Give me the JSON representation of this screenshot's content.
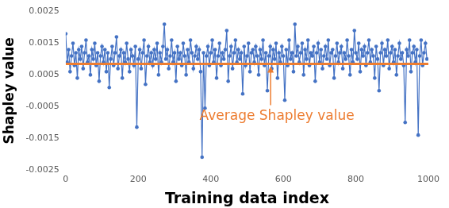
{
  "chart_data": {
    "type": "line",
    "x_label": "Training data index",
    "y_label": "Shapley value",
    "color": "#4472c4",
    "marker": "circle",
    "grid": false,
    "xlim": [
      0,
      1000
    ],
    "xticks": [
      0,
      200,
      400,
      600,
      800,
      1000
    ],
    "ylim": [
      -0.0025,
      0.0025
    ],
    "yticks": [
      -0.0025,
      -0.0015,
      -0.0005,
      0.0005,
      0.0015,
      0.0025
    ],
    "average": {
      "label": "Average Shapley value",
      "value": 0.00085,
      "color": "#ed7d31"
    },
    "x": [
      0,
      4,
      8,
      12,
      16,
      20,
      24,
      28,
      32,
      36,
      40,
      44,
      48,
      52,
      56,
      60,
      64,
      68,
      72,
      76,
      80,
      84,
      88,
      92,
      96,
      100,
      104,
      108,
      112,
      116,
      120,
      124,
      128,
      132,
      136,
      140,
      144,
      148,
      152,
      156,
      160,
      164,
      168,
      172,
      176,
      180,
      184,
      188,
      192,
      196,
      200,
      204,
      208,
      212,
      216,
      220,
      224,
      228,
      232,
      236,
      240,
      244,
      248,
      252,
      256,
      260,
      264,
      268,
      272,
      276,
      280,
      284,
      288,
      292,
      296,
      300,
      304,
      308,
      312,
      316,
      320,
      324,
      328,
      332,
      336,
      340,
      344,
      348,
      352,
      356,
      360,
      364,
      368,
      372,
      376,
      380,
      384,
      388,
      392,
      396,
      400,
      404,
      408,
      412,
      416,
      420,
      424,
      428,
      432,
      436,
      440,
      444,
      448,
      452,
      456,
      460,
      464,
      468,
      472,
      476,
      480,
      484,
      488,
      492,
      496,
      500,
      504,
      508,
      512,
      516,
      520,
      524,
      528,
      532,
      536,
      540,
      544,
      548,
      552,
      556,
      560,
      564,
      568,
      572,
      576,
      580,
      584,
      588,
      592,
      596,
      600,
      604,
      608,
      612,
      616,
      620,
      624,
      628,
      632,
      636,
      640,
      644,
      648,
      652,
      656,
      660,
      664,
      668,
      672,
      676,
      680,
      684,
      688,
      692,
      696,
      700,
      704,
      708,
      712,
      716,
      720,
      724,
      728,
      732,
      736,
      740,
      744,
      748,
      752,
      756,
      760,
      764,
      768,
      772,
      776,
      780,
      784,
      788,
      792,
      796,
      800,
      804,
      808,
      812,
      816,
      820,
      824,
      828,
      832,
      836,
      840,
      844,
      848,
      852,
      856,
      860,
      864,
      868,
      872,
      876,
      880,
      884,
      888,
      892,
      896,
      900,
      904,
      908,
      912,
      916,
      920,
      924,
      928,
      932,
      936,
      940,
      944,
      948,
      952,
      956,
      960,
      964,
      968,
      972,
      976,
      980,
      984,
      988,
      992,
      996
    ],
    "values": [
      0.0018,
      0.0009,
      0.0013,
      0.0006,
      0.0011,
      0.0015,
      0.0008,
      0.0012,
      0.0004,
      0.0013,
      0.001,
      0.0014,
      0.0007,
      0.0012,
      0.0016,
      0.0009,
      0.0011,
      0.0005,
      0.0013,
      0.001,
      0.0015,
      0.0008,
      0.0012,
      0.0003,
      0.0011,
      0.0014,
      0.0009,
      0.0013,
      0.0006,
      0.0012,
      0.0001,
      0.001,
      0.0014,
      0.0008,
      0.0012,
      0.0017,
      0.0007,
      0.0011,
      0.0013,
      0.0004,
      0.0012,
      0.0009,
      0.0015,
      0.001,
      0.0006,
      0.0013,
      0.0011,
      0.0008,
      0.0014,
      -0.00115,
      0.001,
      0.0013,
      0.0007,
      0.0012,
      0.0016,
      0.0002,
      0.0011,
      0.0014,
      0.0009,
      0.0012,
      0.0008,
      0.0013,
      0.001,
      0.0015,
      0.0005,
      0.0012,
      0.0009,
      0.0014,
      0.0021,
      0.001,
      0.0013,
      0.0007,
      0.0011,
      0.0016,
      0.0009,
      0.0012,
      0.0003,
      0.0014,
      0.001,
      0.0012,
      0.0008,
      0.0015,
      0.0011,
      0.0005,
      0.0013,
      0.0009,
      0.0016,
      0.0012,
      0.0007,
      0.0011,
      0.0014,
      0.001,
      0.0013,
      0.0006,
      -0.0021,
      0.0012,
      -0.00055,
      0.0011,
      0.0014,
      0.0008,
      0.0012,
      0.0016,
      0.0009,
      0.0013,
      0.0004,
      0.0011,
      0.0015,
      0.0008,
      0.0012,
      0.001,
      0.0013,
      0.0019,
      0.0003,
      0.0011,
      0.0014,
      0.0007,
      0.0012,
      0.0016,
      0.0009,
      0.0013,
      0.001,
      0.0012,
      -0.0001,
      0.0014,
      0.0008,
      0.0011,
      0.0015,
      0.0006,
      0.0012,
      0.0013,
      0.0009,
      0.0014,
      0.0011,
      0.0005,
      0.0013,
      0.001,
      0.0016,
      0.0008,
      0.0012,
      0.0,
      0.0011,
      0.0014,
      0.0007,
      0.0013,
      0.001,
      0.0015,
      0.0004,
      0.0012,
      0.0009,
      0.0014,
      0.0011,
      -0.0003,
      0.0013,
      0.0008,
      0.0016,
      0.001,
      0.0012,
      0.0006,
      0.0021,
      0.0011,
      0.0014,
      0.0009,
      0.0012,
      0.0015,
      0.0005,
      0.0013,
      0.001,
      0.0016,
      0.0008,
      0.0012,
      0.0011,
      0.0014,
      0.0003,
      0.0012,
      0.0015,
      0.0009,
      0.0013,
      0.0007,
      0.0011,
      0.0014,
      0.001,
      0.0016,
      0.0008,
      0.0012,
      0.0013,
      0.0004,
      0.0011,
      0.0015,
      0.0009,
      0.0012,
      0.0014,
      0.0007,
      0.0012,
      0.001,
      0.0016,
      0.0011,
      0.0005,
      0.0013,
      0.0009,
      0.0019,
      0.0012,
      0.001,
      0.0015,
      0.0006,
      0.0013,
      0.0011,
      0.0014,
      0.0008,
      0.0012,
      0.0016,
      0.0009,
      0.0013,
      0.0011,
      0.0004,
      0.0014,
      0.001,
      0.0,
      0.0012,
      0.0015,
      0.0008,
      0.0013,
      0.0011,
      0.0016,
      0.0007,
      0.0012,
      0.0014,
      0.0009,
      0.0013,
      0.0005,
      0.0011,
      0.0015,
      0.001,
      0.0012,
      0.0008,
      -0.001,
      0.0013,
      0.0011,
      0.0016,
      0.0006,
      0.0012,
      0.0014,
      0.0009,
      0.0013,
      -0.0014,
      0.0011,
      0.0016,
      0.0008,
      0.0012,
      0.0015,
      0.001
    ]
  }
}
